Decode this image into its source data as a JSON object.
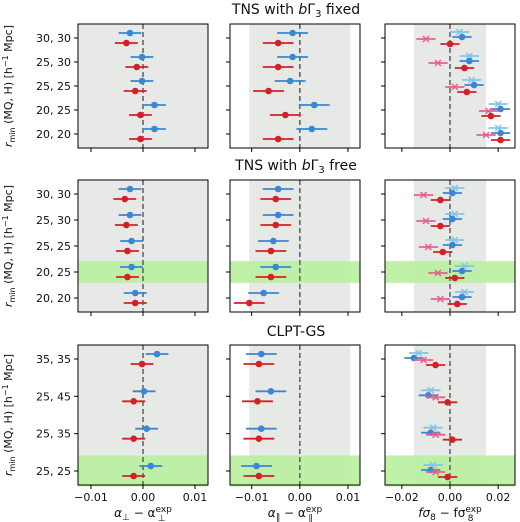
{
  "chart_data": {
    "type": "scatter",
    "colors": {
      "blue": "#3a86d8",
      "red": "#d42027",
      "light_blue": "#86c3e8",
      "pink": "#e8608a",
      "band_grey": "#e6e9e6",
      "band_green": "#b9f0a0",
      "dash": "#666666"
    },
    "column_xlabels": [
      {
        "base": "α",
        "sub": "⊥",
        "minus": " − α",
        "sup": "exp",
        "sub2": "⊥"
      },
      {
        "base": "α",
        "sub": "∥",
        "minus": " − α",
        "sup": "exp",
        "sub2": "∥"
      },
      {
        "base": "fσ",
        "sub": "8",
        "minus": " − fσ",
        "sup": "exp",
        "sub2": "8"
      }
    ],
    "xlims": [
      [
        -0.0125,
        0.0125
      ],
      [
        -0.0145,
        0.0125
      ],
      [
        -0.027,
        0.027
      ]
    ],
    "xticks": [
      {
        "values": [
          -0.01,
          0.0,
          0.01
        ],
        "labels": [
          "−0.01",
          "0.00",
          "0.01"
        ]
      },
      {
        "values": [
          -0.01,
          0.0,
          0.01
        ],
        "labels": [
          "−0.01",
          "0.00",
          "0.01"
        ]
      },
      {
        "values": [
          -0.02,
          0.0,
          0.02
        ],
        "labels": [
          "−0.02",
          "0.00",
          "0.02"
        ]
      }
    ],
    "bands": [
      [
        -0.0125,
        0.0125
      ],
      [
        -0.0105,
        0.0105
      ],
      [
        -0.015,
        0.015
      ]
    ],
    "rows": [
      {
        "title": {
          "pre": "TNS with ",
          "b": "b",
          "gamma": "Γ",
          "sub": "3",
          "post": " fixed"
        },
        "ylabel": "r",
        "ylabel_sub": "min",
        "ylabel_text": " (MQ, H) [h",
        "ylabel_sup": "−1",
        "ylabel_end": " Mpc]",
        "ylabels": [
          "30, 30",
          "25, 30",
          "25, 25",
          "20, 25",
          "20, 20"
        ],
        "highlight": -1,
        "points": [
          [
            {
              "blue": [
                -0.0025,
                0.0022
              ],
              "red": [
                -0.0032,
                0.0022
              ]
            },
            {
              "blue": [
                -0.0002,
                0.0022
              ],
              "red": [
                -0.0012,
                0.0022
              ]
            },
            {
              "blue": [
                -0.0002,
                0.0022
              ],
              "red": [
                -0.0015,
                0.0022
              ]
            },
            {
              "blue": [
                0.0022,
                0.0022
              ],
              "red": [
                -0.0005,
                0.0022
              ]
            },
            {
              "blue": [
                0.0022,
                0.0022
              ],
              "red": [
                -0.0005,
                0.0022
              ]
            }
          ],
          [
            {
              "blue": [
                -0.0015,
                0.0032
              ],
              "red": [
                -0.0045,
                0.0032
              ]
            },
            {
              "blue": [
                -0.0015,
                0.0032
              ],
              "red": [
                -0.0045,
                0.0032
              ]
            },
            {
              "blue": [
                -0.002,
                0.0032
              ],
              "red": [
                -0.0065,
                0.0032
              ]
            },
            {
              "blue": [
                0.003,
                0.0032
              ],
              "red": [
                -0.003,
                0.0032
              ]
            },
            {
              "blue": [
                0.0025,
                0.0032
              ],
              "red": [
                -0.0045,
                0.0032
              ]
            }
          ],
          [
            {
              "blue": [
                0.005,
                0.004
              ],
              "red": [
                0.0,
                0.004
              ],
              "lblue": [
                0.004,
                0.004
              ],
              "pink": [
                -0.01,
                0.004
              ]
            },
            {
              "blue": [
                0.008,
                0.004
              ],
              "red": [
                0.006,
                0.004
              ],
              "lblue": [
                0.008,
                0.004
              ],
              "pink": [
                -0.005,
                0.004
              ]
            },
            {
              "blue": [
                0.01,
                0.004
              ],
              "red": [
                0.007,
                0.004
              ],
              "lblue": [
                0.009,
                0.004
              ],
              "pink": [
                0.002,
                0.004
              ]
            },
            {
              "blue": [
                0.021,
                0.004
              ],
              "red": [
                0.017,
                0.004
              ],
              "lblue": [
                0.02,
                0.004
              ],
              "pink": [
                0.016,
                0.004
              ]
            },
            {
              "blue": [
                0.021,
                0.004
              ],
              "red": [
                0.021,
                0.004
              ],
              "lblue": [
                0.02,
                0.004
              ],
              "pink": [
                0.015,
                0.004
              ]
            }
          ]
        ]
      },
      {
        "title": {
          "pre": "TNS with ",
          "b": "b",
          "gamma": "Γ",
          "sub": "3",
          "post": " free"
        },
        "ylabel": "r",
        "ylabel_sub": "min",
        "ylabel_text": " (MQ, H) [h",
        "ylabel_sup": "−1",
        "ylabel_end": " Mpc]",
        "ylabels": [
          "30, 30",
          "25, 30",
          "25, 25",
          "20, 25",
          "20, 20"
        ],
        "highlight": 3,
        "points": [
          [
            {
              "blue": [
                -0.0025,
                0.0022
              ],
              "red": [
                -0.0035,
                0.0022
              ]
            },
            {
              "blue": [
                -0.0025,
                0.0022
              ],
              "red": [
                -0.0032,
                0.0022
              ]
            },
            {
              "blue": [
                -0.0022,
                0.0022
              ],
              "red": [
                -0.003,
                0.0022
              ]
            },
            {
              "blue": [
                -0.0022,
                0.0022
              ],
              "red": [
                -0.003,
                0.0022
              ]
            },
            {
              "blue": [
                -0.0015,
                0.0022
              ],
              "red": [
                -0.0015,
                0.0022
              ]
            }
          ],
          [
            {
              "blue": [
                -0.0045,
                0.0032
              ],
              "red": [
                -0.005,
                0.0032
              ]
            },
            {
              "blue": [
                -0.0045,
                0.0032
              ],
              "red": [
                -0.005,
                0.0032
              ]
            },
            {
              "blue": [
                -0.0055,
                0.0032
              ],
              "red": [
                -0.006,
                0.0032
              ]
            },
            {
              "blue": [
                -0.005,
                0.0032
              ],
              "red": [
                -0.006,
                0.0032
              ]
            },
            {
              "blue": [
                -0.0075,
                0.0032
              ],
              "red": [
                -0.0105,
                0.0032
              ]
            }
          ],
          [
            {
              "blue": [
                0.001,
                0.004
              ],
              "red": [
                -0.004,
                0.004
              ],
              "lblue": [
                0.002,
                0.004
              ],
              "pink": [
                -0.011,
                0.004
              ]
            },
            {
              "blue": [
                0.001,
                0.004
              ],
              "red": [
                -0.004,
                0.004
              ],
              "lblue": [
                0.002,
                0.004
              ],
              "pink": [
                -0.01,
                0.004
              ]
            },
            {
              "blue": [
                0.001,
                0.004
              ],
              "red": [
                -0.003,
                0.004
              ],
              "lblue": [
                0.002,
                0.004
              ],
              "pink": [
                -0.009,
                0.004
              ]
            },
            {
              "blue": [
                0.005,
                0.004
              ],
              "red": [
                0.002,
                0.004
              ],
              "lblue": [
                0.006,
                0.004
              ],
              "pink": [
                -0.005,
                0.004
              ]
            },
            {
              "blue": [
                0.005,
                0.004
              ],
              "red": [
                0.003,
                0.004
              ],
              "lblue": [
                0.006,
                0.004
              ],
              "pink": [
                -0.004,
                0.004
              ]
            }
          ]
        ]
      },
      {
        "title": {
          "pre": "CLPT-GS",
          "b": "",
          "gamma": "",
          "sub": "",
          "post": ""
        },
        "ylabel": "r",
        "ylabel_sub": "min",
        "ylabel_text": " (MQ, H) [h",
        "ylabel_sup": "−1",
        "ylabel_end": " Mpc]",
        "ylabels": [
          "35, 35",
          "25, 45",
          "25, 35",
          "25, 25"
        ],
        "highlight": 3,
        "points": [
          [
            {
              "blue": [
                0.0027,
                0.0022
              ],
              "red": [
                -0.0002,
                0.0022
              ]
            },
            {
              "blue": [
                0.0002,
                0.0022
              ],
              "red": [
                -0.0018,
                0.0022
              ]
            },
            {
              "blue": [
                0.0007,
                0.0022
              ],
              "red": [
                -0.0018,
                0.0022
              ]
            },
            {
              "blue": [
                0.0015,
                0.0022
              ],
              "red": [
                -0.0018,
                0.0022
              ]
            }
          ],
          [
            {
              "blue": [
                -0.008,
                0.0032
              ],
              "red": [
                -0.0085,
                0.0032
              ]
            },
            {
              "blue": [
                -0.006,
                0.0032
              ],
              "red": [
                -0.0088,
                0.0032
              ]
            },
            {
              "blue": [
                -0.008,
                0.0032
              ],
              "red": [
                -0.0085,
                0.0032
              ]
            },
            {
              "blue": [
                -0.009,
                0.0032
              ],
              "red": [
                -0.0085,
                0.0032
              ]
            }
          ],
          [
            {
              "blue": [
                -0.015,
                0.004
              ],
              "red": [
                -0.006,
                0.004
              ],
              "lblue": [
                -0.013,
                0.004
              ],
              "pink": [
                -0.011,
                0.004
              ]
            },
            {
              "blue": [
                -0.009,
                0.004
              ],
              "red": [
                -0.001,
                0.004
              ],
              "lblue": [
                -0.008,
                0.004
              ],
              "pink": [
                -0.006,
                0.004
              ]
            },
            {
              "blue": [
                -0.008,
                0.004
              ],
              "red": [
                0.001,
                0.004
              ],
              "lblue": [
                -0.007,
                0.004
              ],
              "pink": [
                -0.006,
                0.004
              ]
            },
            {
              "blue": [
                -0.008,
                0.004
              ],
              "red": [
                -0.001,
                0.004
              ],
              "lblue": [
                -0.007,
                0.004
              ],
              "pink": [
                -0.006,
                0.004
              ]
            }
          ]
        ]
      }
    ]
  }
}
